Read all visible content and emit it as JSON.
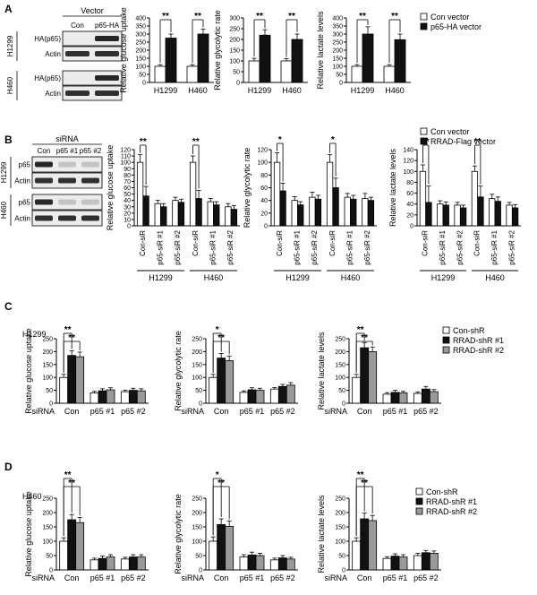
{
  "panels": [
    {
      "letter": "A",
      "blot": {
        "header_line": "Vector",
        "lanes": [
          "Con",
          "p65-HA"
        ],
        "groups": [
          {
            "cell": "H1299",
            "rows": [
              "HA(p65)",
              "Actin"
            ]
          },
          {
            "cell": "H460",
            "rows": [
              "HA(p65)",
              "Actin"
            ]
          }
        ]
      },
      "legend": [
        "Con vector",
        "p65-HA vector"
      ],
      "charts": [
        {
          "type": "bar",
          "ylabel": "Relative glucose uptake",
          "ylim": [
            0,
            400
          ],
          "yticks": [
            0,
            50,
            100,
            150,
            200,
            250,
            300,
            350,
            400
          ],
          "categories": [
            "H1299",
            "H460"
          ],
          "series": [
            {
              "name": "Con vector",
              "values": [
                100,
                100
              ],
              "errors": [
                10,
                10
              ]
            },
            {
              "name": "p65-HA vector",
              "values": [
                275,
                300
              ],
              "errors": [
                25,
                30
              ]
            }
          ],
          "annotations": [
            "**",
            "**"
          ]
        },
        {
          "type": "bar",
          "ylabel": "Relative glycolytic rate",
          "ylim": [
            0,
            300
          ],
          "yticks": [
            0,
            50,
            100,
            150,
            200,
            250,
            300
          ],
          "categories": [
            "H1299",
            "H460"
          ],
          "series": [
            {
              "name": "Con vector",
              "values": [
                100,
                100
              ],
              "errors": [
                12,
                10
              ]
            },
            {
              "name": "p65-HA vector",
              "values": [
                220,
                200
              ],
              "errors": [
                25,
                25
              ]
            }
          ],
          "annotations": [
            "**",
            "**"
          ]
        },
        {
          "type": "bar",
          "ylabel": "Relative lactate levels",
          "ylim": [
            0,
            400
          ],
          "yticks": [
            0,
            50,
            100,
            150,
            200,
            250,
            300,
            350,
            400
          ],
          "categories": [
            "H1299",
            "H460"
          ],
          "series": [
            {
              "name": "Con vector",
              "values": [
                100,
                100
              ],
              "errors": [
                10,
                10
              ]
            },
            {
              "name": "p65-HA vector",
              "values": [
                300,
                265
              ],
              "errors": [
                45,
                35
              ]
            }
          ],
          "annotations": [
            "**",
            "**"
          ]
        }
      ]
    },
    {
      "letter": "B",
      "blot": {
        "header_line": "siRNA",
        "lanes": [
          "Con",
          "p65 #1",
          "p65 #2"
        ],
        "groups": [
          {
            "cell": "H1299",
            "rows": [
              "p65",
              "Actin"
            ]
          },
          {
            "cell": "H460",
            "rows": [
              "p65",
              "Actin"
            ]
          }
        ]
      },
      "legend": [
        "Con vector",
        "RRAD-Flag vector"
      ],
      "charts": [
        {
          "type": "bar",
          "ylabel": "Relative glucose uptake",
          "ylim": [
            0,
            120
          ],
          "yticks": [
            0,
            10,
            20,
            30,
            40,
            50,
            60,
            70,
            80,
            90,
            100,
            110,
            120
          ],
          "categories": [
            "Con-siR",
            "p65-siR #1",
            "p65-siR #2",
            "Con-siR",
            "p65-siR #1",
            "p65-siR #2"
          ],
          "groups": [
            "H1299",
            "H460"
          ],
          "series": [
            {
              "name": "Con vector",
              "values": [
                100,
                35,
                40,
                100,
                38,
                30
              ],
              "errors": [
                12,
                5,
                5,
                10,
                5,
                5
              ]
            },
            {
              "name": "RRAD-Flag vector",
              "values": [
                47,
                30,
                37,
                43,
                33,
                26
              ],
              "errors": [
                15,
                5,
                5,
                13,
                5,
                6
              ]
            }
          ],
          "annotations": [
            "**",
            "**"
          ]
        },
        {
          "type": "bar",
          "ylabel": "Relative glycolytic rate",
          "ylim": [
            0,
            120
          ],
          "yticks": [
            0,
            20,
            40,
            60,
            80,
            100,
            120
          ],
          "categories": [
            "Con-siR",
            "p65-siR #1",
            "p65-siR #2",
            "Con-siR",
            "p65-siR #1",
            "p65-siR #2"
          ],
          "groups": [
            "H1299",
            "H460"
          ],
          "series": [
            {
              "name": "Con vector",
              "values": [
                100,
                40,
                45,
                100,
                45,
                43
              ],
              "errors": [
                15,
                6,
                8,
                12,
                6,
                8
              ]
            },
            {
              "name": "RRAD-Flag vector",
              "values": [
                55,
                33,
                42,
                60,
                42,
                40
              ],
              "errors": [
                12,
                5,
                6,
                15,
                6,
                5
              ]
            }
          ],
          "annotations": [
            "*",
            "*"
          ]
        },
        {
          "type": "bar",
          "ylabel": "Relative lactate levels",
          "ylim": [
            0,
            140
          ],
          "yticks": [
            0,
            20,
            40,
            60,
            80,
            100,
            120,
            140
          ],
          "categories": [
            "Con-siR",
            "p65-siR #1",
            "p65-siR #2",
            "Con-siR",
            "p65-siR #1",
            "p65-siR #2"
          ],
          "groups": [
            "H1299",
            "H460"
          ],
          "series": [
            {
              "name": "Con vector",
              "values": [
                100,
                40,
                38,
                100,
                50,
                38
              ],
              "errors": [
                12,
                6,
                5,
                10,
                8,
                5
              ]
            },
            {
              "name": "RRAD-Flag vector",
              "values": [
                43,
                38,
                33,
                53,
                45,
                33
              ],
              "errors": [
                30,
                6,
                5,
                20,
                8,
                6
              ]
            }
          ],
          "annotations": [
            "**",
            "**"
          ]
        }
      ]
    },
    {
      "letter": "C",
      "cell_label": "H1299",
      "legend": [
        "Con-shR",
        "RRAD-shR #1",
        "RRAD-shR #2"
      ],
      "xrow_label": "siRNA",
      "charts": [
        {
          "type": "bar",
          "ylabel": "Relative glucose uptake",
          "ylim": [
            0,
            250
          ],
          "yticks": [
            0,
            50,
            100,
            150,
            200,
            250
          ],
          "categories": [
            "Con",
            "p65 #1",
            "p65 #2"
          ],
          "series": [
            {
              "name": "Con-shR",
              "values": [
                100,
                40,
                45
              ],
              "errors": [
                12,
                6,
                6
              ]
            },
            {
              "name": "RRAD-shR #1",
              "values": [
                185,
                48,
                50
              ],
              "errors": [
                18,
                8,
                8
              ]
            },
            {
              "name": "RRAD-shR #2",
              "values": [
                180,
                52,
                48
              ],
              "errors": [
                18,
                8,
                8
              ]
            }
          ],
          "annotations": [
            "**",
            "**"
          ]
        },
        {
          "type": "bar",
          "ylabel": "Relative glycolytic rate",
          "ylim": [
            0,
            250
          ],
          "yticks": [
            0,
            50,
            100,
            150,
            200,
            250
          ],
          "categories": [
            "Con",
            "p65 #1",
            "p65 #2"
          ],
          "series": [
            {
              "name": "Con-shR",
              "values": [
                100,
                42,
                55
              ],
              "errors": [
                12,
                6,
                6
              ]
            },
            {
              "name": "RRAD-shR #1",
              "values": [
                175,
                52,
                65
              ],
              "errors": [
                18,
                8,
                8
              ]
            },
            {
              "name": "RRAD-shR #2",
              "values": [
                165,
                50,
                70
              ],
              "errors": [
                18,
                8,
                10
              ]
            }
          ],
          "annotations": [
            "*",
            "**"
          ]
        },
        {
          "type": "bar",
          "ylabel": "Relative lactate levels",
          "ylim": [
            0,
            250
          ],
          "yticks": [
            0,
            50,
            100,
            150,
            200,
            250
          ],
          "categories": [
            "Con",
            "p65 #1",
            "p65 #2"
          ],
          "series": [
            {
              "name": "Con-shR",
              "values": [
                100,
                35,
                38
              ],
              "errors": [
                12,
                6,
                6
              ]
            },
            {
              "name": "RRAD-shR #1",
              "values": [
                215,
                42,
                55
              ],
              "errors": [
                20,
                8,
                10
              ]
            },
            {
              "name": "RRAD-shR #2",
              "values": [
                200,
                40,
                45
              ],
              "errors": [
                18,
                6,
                8
              ]
            }
          ],
          "annotations": [
            "**",
            "**"
          ]
        }
      ]
    },
    {
      "letter": "D",
      "cell_label": "H460",
      "legend": [
        "Con-shR",
        "RRAD-shR #1",
        "RRAD-shR #2"
      ],
      "xrow_label": "siRNA",
      "charts": [
        {
          "type": "bar",
          "ylabel": "Relative glucose uptake",
          "ylim": [
            0,
            250
          ],
          "yticks": [
            0,
            50,
            100,
            150,
            200,
            250
          ],
          "categories": [
            "Con",
            "p65 #1",
            "p65 #2"
          ],
          "series": [
            {
              "name": "Con-shR",
              "values": [
                100,
                35,
                38
              ],
              "errors": [
                12,
                6,
                6
              ]
            },
            {
              "name": "RRAD-shR #1",
              "values": [
                175,
                40,
                45
              ],
              "errors": [
                18,
                8,
                8
              ]
            },
            {
              "name": "RRAD-shR #2",
              "values": [
                165,
                45,
                45
              ],
              "errors": [
                18,
                8,
                8
              ]
            }
          ],
          "annotations": [
            "**",
            "**"
          ]
        },
        {
          "type": "bar",
          "ylabel": "Relative glycolytic rate",
          "ylim": [
            0,
            250
          ],
          "yticks": [
            0,
            50,
            100,
            150,
            200,
            250
          ],
          "categories": [
            "Con",
            "p65 #1",
            "p65 #2"
          ],
          "series": [
            {
              "name": "Con-shR",
              "values": [
                100,
                45,
                35
              ],
              "errors": [
                15,
                8,
                6
              ]
            },
            {
              "name": "RRAD-shR #1",
              "values": [
                158,
                52,
                42
              ],
              "errors": [
                20,
                10,
                8
              ]
            },
            {
              "name": "RRAD-shR #2",
              "values": [
                152,
                50,
                38
              ],
              "errors": [
                18,
                8,
                6
              ]
            }
          ],
          "annotations": [
            "*",
            "**"
          ]
        },
        {
          "type": "bar",
          "ylabel": "Relative lactate levels",
          "ylim": [
            0,
            250
          ],
          "yticks": [
            0,
            50,
            100,
            150,
            200,
            250
          ],
          "categories": [
            "Con",
            "p65 #1",
            "p65 #2"
          ],
          "series": [
            {
              "name": "Con-shR",
              "values": [
                100,
                40,
                50
              ],
              "errors": [
                12,
                6,
                8
              ]
            },
            {
              "name": "RRAD-shR #1",
              "values": [
                178,
                48,
                60
              ],
              "errors": [
                20,
                8,
                8
              ]
            },
            {
              "name": "RRAD-shR #2",
              "values": [
                172,
                45,
                58
              ],
              "errors": [
                18,
                8,
                8
              ]
            }
          ],
          "annotations": [
            "**",
            "**"
          ]
        }
      ]
    }
  ],
  "colors": {
    "con": "#ffffff",
    "black": "#111111",
    "gray": "#9a9a9a",
    "blot_bg": "#ececec",
    "band": "#1c1c1c",
    "band_faint": "#8a8a8a"
  }
}
